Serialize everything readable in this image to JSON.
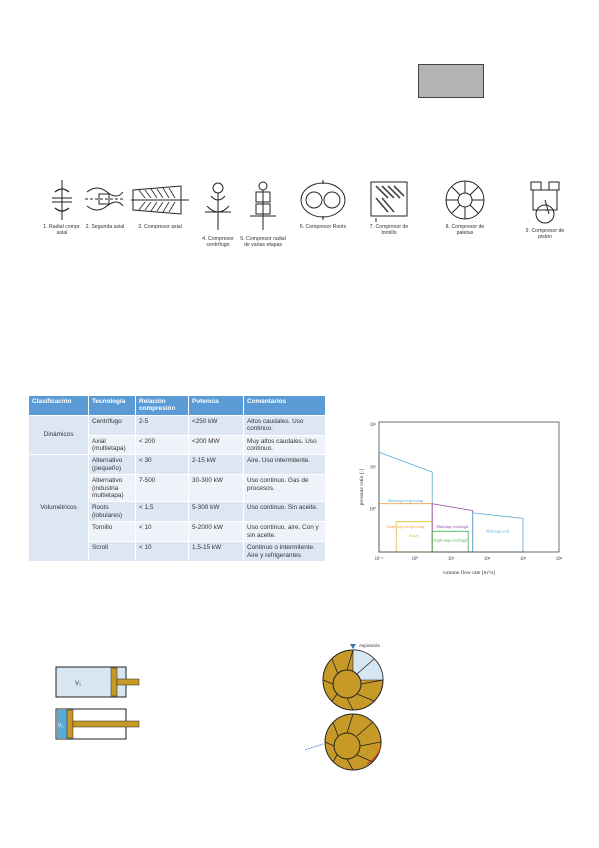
{
  "compressors": [
    {
      "label": "1. Radial compr. axial"
    },
    {
      "label": "2. Segunda axial"
    },
    {
      "label": "3. Compresor axial"
    },
    {
      "label": "4. Compresor centrífugo"
    },
    {
      "label": "5. Compresor radial de varias etapas"
    },
    {
      "label": "6. Compresor Roots"
    },
    {
      "label": "7. Compresor de tornillo"
    },
    {
      "label": "8. Compresor de paletas"
    },
    {
      "label": "9. Compresor de pistón"
    }
  ],
  "table": {
    "headers": [
      "Clasificación",
      "Tecnología",
      "Relación compresión",
      "Potencia",
      "Comentarios"
    ],
    "groups": [
      {
        "name": "Dinámicos",
        "rows": [
          {
            "tech": "Centrífugo",
            "ratio": "2-5",
            "power": "<250 kW",
            "comment": "Altos caudales. Uso continuo."
          },
          {
            "tech": "Axial (multietapa)",
            "ratio": "< 200",
            "power": "<200 MW",
            "comment": "Muy altos caudales. Uso continuo."
          }
        ]
      },
      {
        "name": "Volumétricos",
        "rows": [
          {
            "tech": "Alternativo (pequeño)",
            "ratio": "< 30",
            "power": "2-15 kW",
            "comment": "Aire. Uso intermitente."
          },
          {
            "tech": "Alternativo (industria multietapa)",
            "ratio": "7-500",
            "power": "30-300 kW",
            "comment": "Uso continuo. Gas de procesos."
          },
          {
            "tech": "Roots (lobulares)",
            "ratio": "< 1,5",
            "power": "5-300 kW",
            "comment": "Uso continuo. Sin aceite."
          },
          {
            "tech": "Tornillo",
            "ratio": "< 10",
            "power": "5-2000 kW",
            "comment": "Uso continuo. aire. Con y sin aceite."
          },
          {
            "tech": "Scroll",
            "ratio": "< 10",
            "power": "1,5-15 kW",
            "comment": "Continuo o intermitente. Aire y refrigerantes"
          }
        ]
      }
    ]
  },
  "chart_data": {
    "type": "area",
    "xlabel": "volume flow rate [m³/s]",
    "ylabel": "pressure ratio [-]",
    "xscale": "log",
    "yscale": "log",
    "xlim": [
      0.1,
      10000
    ],
    "ylim": [
      1,
      1000
    ],
    "x_ticks": [
      "10⁻¹",
      "10⁰",
      "10¹",
      "10²",
      "10³",
      "10⁴"
    ],
    "y_ticks": [
      "10²",
      "10¹",
      "10⁰"
    ],
    "regions": [
      {
        "name": "Multistage reciprocating",
        "color": "#5aa9d6",
        "x": [
          0.1,
          0.1,
          3,
          3
        ],
        "y": [
          1,
          200,
          70,
          1
        ]
      },
      {
        "name": "Single-stage reciprocating",
        "color": "#f0a040",
        "x": [
          0.1,
          0.1,
          3,
          3
        ],
        "y": [
          1,
          13,
          13,
          1
        ]
      },
      {
        "name": "Rotary",
        "color": "#d9c23a",
        "x": [
          0.3,
          0.3,
          3,
          3
        ],
        "y": [
          1,
          5,
          5,
          1
        ]
      },
      {
        "name": "Multistage centrifugal",
        "color": "#9a4fb0",
        "x": [
          3,
          3,
          40,
          40
        ],
        "y": [
          1,
          13,
          9,
          1
        ]
      },
      {
        "name": "Single-stage centrifugal",
        "color": "#4caf50",
        "x": [
          3,
          3,
          30,
          30
        ],
        "y": [
          1,
          3,
          3,
          1
        ]
      },
      {
        "name": "Multistage axial",
        "color": "#5aa9d6",
        "x": [
          40,
          40,
          1000,
          1000
        ],
        "y": [
          1,
          8,
          6,
          1
        ]
      }
    ]
  },
  "cylinder": {
    "top_label": "V₁",
    "bottom_label": "V₂"
  },
  "rotary": {
    "label": "Aspiración"
  }
}
